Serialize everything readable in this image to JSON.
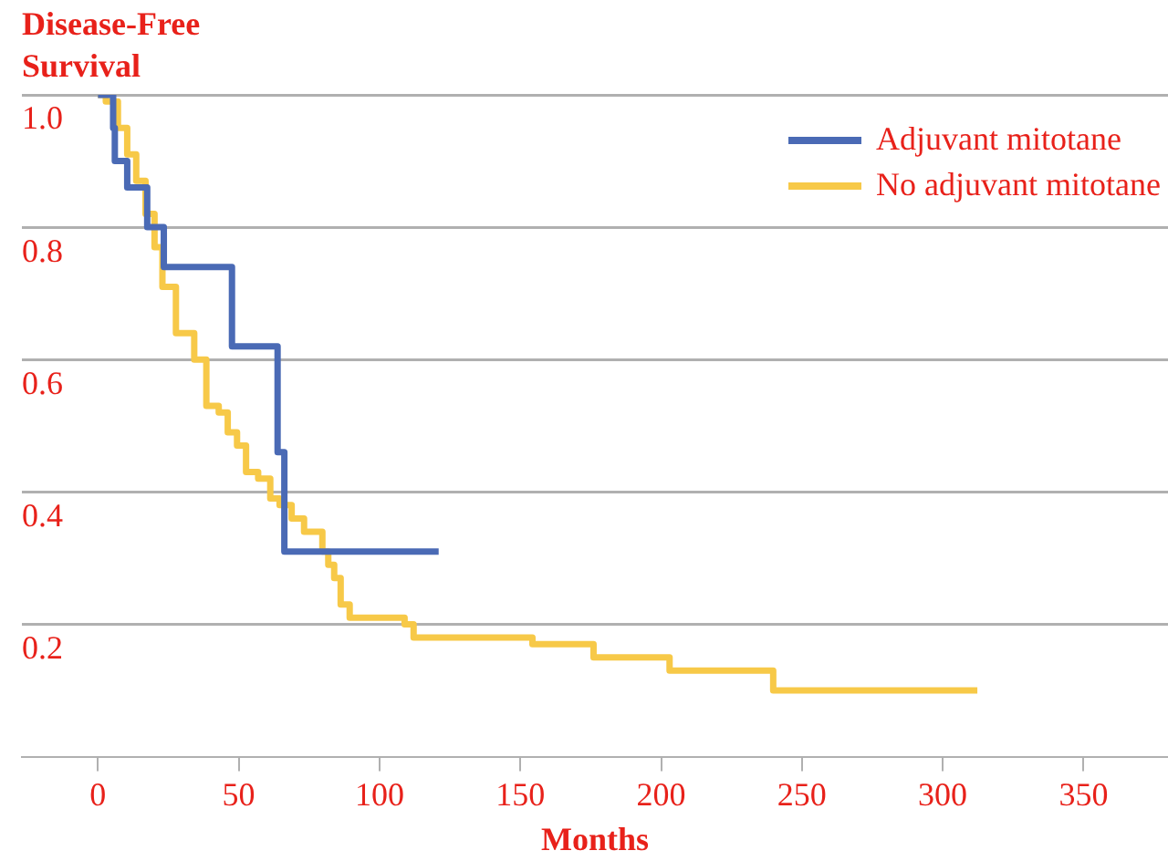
{
  "chart_data": {
    "type": "step",
    "ylabel": "Disease-Free Survival",
    "xlabel": "Months",
    "xlim": [
      -27,
      380
    ],
    "xticks": [
      0,
      50,
      100,
      150,
      200,
      250,
      300,
      350
    ],
    "ylim": [
      0,
      1
    ],
    "yticks": [
      {
        "value": 0.2,
        "label": "0.2"
      },
      {
        "value": 0.4,
        "label": "0.4"
      },
      {
        "value": 0.6,
        "label": "0.6"
      },
      {
        "value": 0.8,
        "label": "0.8"
      },
      {
        "value": 1,
        "label": "1.0"
      }
    ],
    "grid": "y",
    "legend": "top right",
    "series": [
      {
        "name": "Adjuvant mitotane",
        "color": "#4a6ab5",
        "x": [
          0,
          5.4,
          6,
          10.4,
          17.5,
          23.4,
          47.6,
          63.8,
          66.2,
          121
        ],
        "values": [
          1.0,
          0.95,
          0.9,
          0.86,
          0.8,
          0.74,
          0.62,
          0.46,
          0.31,
          0.31
        ]
      },
      {
        "name": "No adjuvant mitotane",
        "color": "#f7c948",
        "x": [
          0,
          2.8,
          7.1,
          10.4,
          13.6,
          16.9,
          20.1,
          22.9,
          27.7,
          33.1,
          34.2,
          38.5,
          42.9,
          46.1,
          49.4,
          52.6,
          56.9,
          61.2,
          64.5,
          68.8,
          73.2,
          79.7,
          81.8,
          83.9,
          86.2,
          89.4,
          99.2,
          108.9,
          112.1,
          154.3,
          176,
          203,
          239.8,
          312.3
        ],
        "values": [
          1.0,
          0.99,
          0.95,
          0.91,
          0.87,
          0.82,
          0.77,
          0.71,
          0.64,
          0.64,
          0.6,
          0.53,
          0.52,
          0.49,
          0.47,
          0.43,
          0.42,
          0.39,
          0.38,
          0.36,
          0.34,
          0.31,
          0.29,
          0.27,
          0.23,
          0.21,
          0.21,
          0.2,
          0.18,
          0.17,
          0.15,
          0.13,
          0.1,
          0.1
        ]
      }
    ]
  }
}
